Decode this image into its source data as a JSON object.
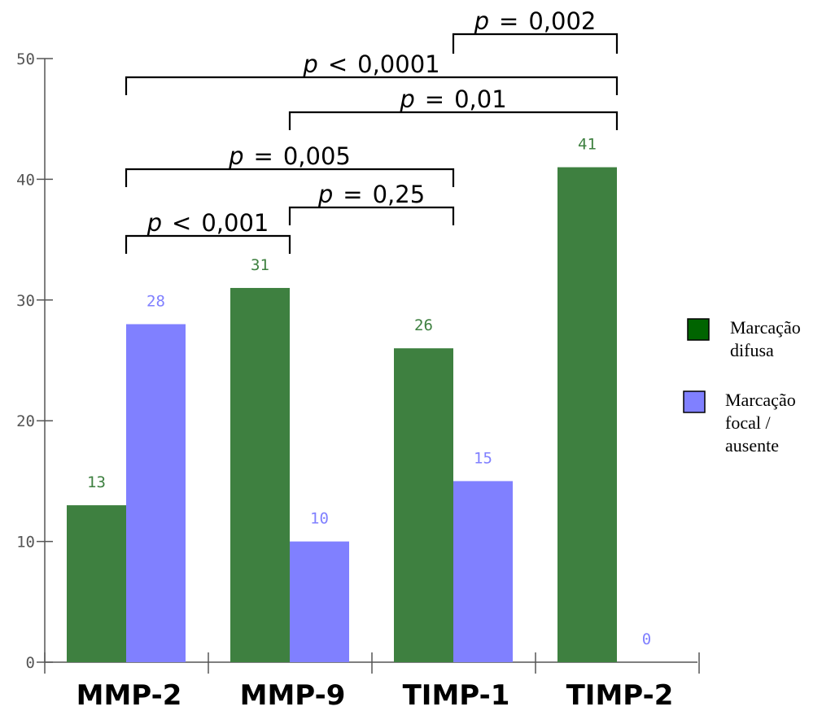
{
  "chart_data": {
    "type": "bar",
    "categories": [
      "MMP-2",
      "MMP-9",
      "TIMP-1",
      "TIMP-2"
    ],
    "series": [
      {
        "name": "Marcação difusa",
        "name_lines": [
          "Marcação",
          "difusa"
        ],
        "values": [
          13,
          31,
          26,
          41
        ],
        "color": "#3e8040",
        "label_color": "#3e8040",
        "legend_color": "#006400"
      },
      {
        "name": "Marcação focal / ausente",
        "name_lines": [
          "Marcação",
          "focal /",
          "ausente"
        ],
        "values": [
          28,
          10,
          15,
          0
        ],
        "color": "#8080ff",
        "label_color": "#8080ff",
        "legend_color": "#8080ff"
      }
    ],
    "ylim": [
      0,
      50
    ],
    "yticks": [
      0,
      10,
      20,
      30,
      40,
      50
    ],
    "legend_position": "right",
    "grid": false,
    "significance": [
      {
        "from": "MMP-2 Marcação difusa",
        "to": "MMP-9 Marcação difusa",
        "p": "p",
        "relation": "<",
        "value": "0,001"
      },
      {
        "from": "MMP-9 Marcação difusa",
        "to": "TIMP-1 Marcação difusa",
        "p": "p",
        "relation": "=",
        "value": "0,25"
      },
      {
        "from": "MMP-2 Marcação difusa",
        "to": "TIMP-1 Marcação difusa",
        "p": "p",
        "relation": "=",
        "value": "0,005"
      },
      {
        "from": "MMP-9 Marcação difusa",
        "to": "TIMP-2 Marcação difusa",
        "p": "p",
        "relation": "=",
        "value": "0,01"
      },
      {
        "from": "MMP-2 Marcação difusa",
        "to": "TIMP-2 Marcação difusa",
        "p": "p",
        "relation": "<",
        "value": "0,0001"
      },
      {
        "from": "TIMP-1 Marcação difusa",
        "to": "TIMP-2 Marcação difusa",
        "p": "p",
        "relation": "=",
        "value": "0,002"
      }
    ]
  }
}
